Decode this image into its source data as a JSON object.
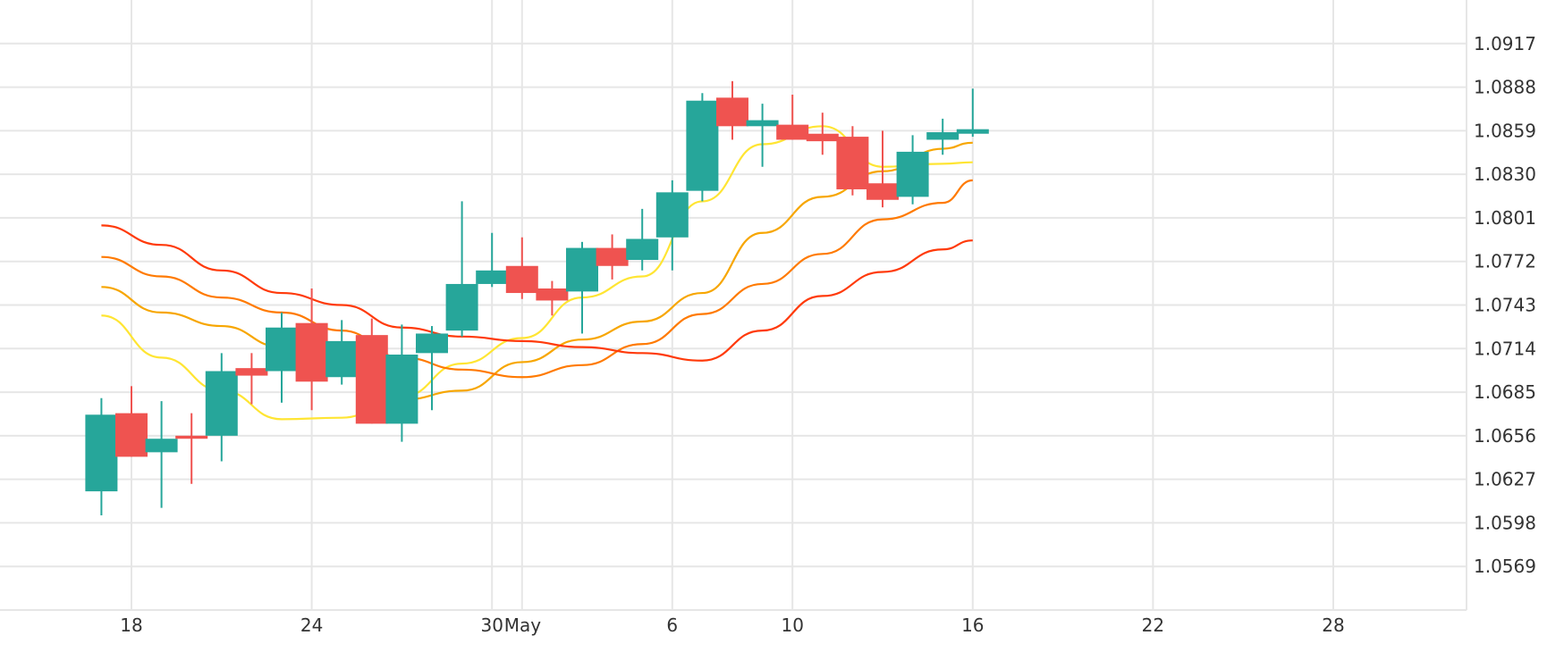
{
  "chart_data": {
    "type": "candlestick",
    "grid": true,
    "colors": {
      "up": "#26a69a",
      "down": "#ef5350",
      "grid": "#e6e6e6",
      "text": "#333333",
      "ma_yellow": "#ffe533",
      "ma_gold": "#f7a600",
      "ma_orange": "#ff7a00",
      "ma_red": "#ff3a0a"
    },
    "x_axis": {
      "date_range": [
        "2023-04-17",
        "2023-05-28"
      ],
      "ticks": [
        {
          "date": "2023-04-18",
          "label": "18"
        },
        {
          "date": "2023-04-24",
          "label": "24"
        },
        {
          "date": "2023-04-30",
          "label": "30"
        },
        {
          "date": "2023-05-01",
          "label": "May"
        },
        {
          "date": "2023-05-06",
          "label": "6"
        },
        {
          "date": "2023-05-10",
          "label": "10"
        },
        {
          "date": "2023-05-16",
          "label": "16"
        },
        {
          "date": "2023-05-22",
          "label": "22"
        },
        {
          "date": "2023-05-28",
          "label": "28"
        }
      ]
    },
    "y_axis": {
      "range": [
        1.054,
        1.0946
      ],
      "ticks": [
        "1.0917",
        "1.0888",
        "1.0859",
        "1.0830",
        "1.0801",
        "1.0772",
        "1.0743",
        "1.0714",
        "1.0685",
        "1.0656",
        "1.0627",
        "1.0598",
        "1.0569"
      ]
    },
    "candles": [
      {
        "date": "2023-04-17",
        "open": 1.0619,
        "high": 1.0681,
        "low": 1.0603,
        "close": 1.067
      },
      {
        "date": "2023-04-18",
        "open": 1.0671,
        "high": 1.0689,
        "low": 1.0642,
        "close": 1.0642
      },
      {
        "date": "2023-04-19",
        "open": 1.0645,
        "high": 1.0679,
        "low": 1.0608,
        "close": 1.0654
      },
      {
        "date": "2023-04-20",
        "open": 1.0656,
        "high": 1.0671,
        "low": 1.0624,
        "close": 1.0654
      },
      {
        "date": "2023-04-21",
        "open": 1.0656,
        "high": 1.0711,
        "low": 1.0639,
        "close": 1.0699
      },
      {
        "date": "2023-04-22",
        "open": 1.0701,
        "high": 1.0711,
        "low": 1.0677,
        "close": 1.0696
      },
      {
        "date": "2023-04-23",
        "open": 1.0699,
        "high": 1.0738,
        "low": 1.0678,
        "close": 1.0728
      },
      {
        "date": "2023-04-24",
        "open": 1.0731,
        "high": 1.0754,
        "low": 1.0673,
        "close": 1.0692
      },
      {
        "date": "2023-04-25",
        "open": 1.0695,
        "high": 1.0733,
        "low": 1.069,
        "close": 1.0719
      },
      {
        "date": "2023-04-26",
        "open": 1.0723,
        "high": 1.0734,
        "low": 1.0664,
        "close": 1.0664
      },
      {
        "date": "2023-04-27",
        "open": 1.0664,
        "high": 1.073,
        "low": 1.0652,
        "close": 1.071
      },
      {
        "date": "2023-04-28",
        "open": 1.0711,
        "high": 1.0729,
        "low": 1.0673,
        "close": 1.0724
      },
      {
        "date": "2023-04-29",
        "open": 1.0726,
        "high": 1.0812,
        "low": 1.0722,
        "close": 1.0757
      },
      {
        "date": "2023-04-30",
        "open": 1.0757,
        "high": 1.0791,
        "low": 1.0755,
        "close": 1.0766
      },
      {
        "date": "2023-05-01",
        "open": 1.0769,
        "high": 1.0788,
        "low": 1.0747,
        "close": 1.0751
      },
      {
        "date": "2023-05-02",
        "open": 1.0754,
        "high": 1.0759,
        "low": 1.0736,
        "close": 1.0746
      },
      {
        "date": "2023-05-03",
        "open": 1.0752,
        "high": 1.0785,
        "low": 1.0724,
        "close": 1.0781
      },
      {
        "date": "2023-05-04",
        "open": 1.0781,
        "high": 1.079,
        "low": 1.076,
        "close": 1.0769
      },
      {
        "date": "2023-05-05",
        "open": 1.0773,
        "high": 1.0807,
        "low": 1.0766,
        "close": 1.0787
      },
      {
        "date": "2023-05-06",
        "open": 1.0788,
        "high": 1.0826,
        "low": 1.0766,
        "close": 1.0818
      },
      {
        "date": "2023-05-07",
        "open": 1.0819,
        "high": 1.0884,
        "low": 1.0812,
        "close": 1.0879
      },
      {
        "date": "2023-05-08",
        "open": 1.0881,
        "high": 1.0892,
        "low": 1.0853,
        "close": 1.0862
      },
      {
        "date": "2023-05-09",
        "open": 1.0862,
        "high": 1.0877,
        "low": 1.0835,
        "close": 1.0866
      },
      {
        "date": "2023-05-10",
        "open": 1.0863,
        "high": 1.0883,
        "low": 1.0853,
        "close": 1.0853
      },
      {
        "date": "2023-05-11",
        "open": 1.0857,
        "high": 1.0871,
        "low": 1.0843,
        "close": 1.0852
      },
      {
        "date": "2023-05-12",
        "open": 1.0855,
        "high": 1.0862,
        "low": 1.0816,
        "close": 1.082
      },
      {
        "date": "2023-05-13",
        "open": 1.0824,
        "high": 1.0859,
        "low": 1.0808,
        "close": 1.0813
      },
      {
        "date": "2023-05-14",
        "open": 1.0815,
        "high": 1.0856,
        "low": 1.081,
        "close": 1.0845
      },
      {
        "date": "2023-05-15",
        "open": 1.0853,
        "high": 1.0867,
        "low": 1.0843,
        "close": 1.0858
      },
      {
        "date": "2023-05-16",
        "open": 1.0857,
        "high": 1.0887,
        "low": 1.0855,
        "close": 1.086
      }
    ],
    "moving_averages": [
      {
        "color": "#ffe533",
        "x": [
          "2023-04-17",
          "2023-04-19",
          "2023-04-21",
          "2023-04-23",
          "2023-04-25",
          "2023-04-27",
          "2023-04-29",
          "2023-05-01",
          "2023-05-03",
          "2023-05-05",
          "2023-05-07",
          "2023-05-09",
          "2023-05-11",
          "2023-05-13",
          "2023-05-15",
          "2023-05-16"
        ],
        "y": [
          1.0736,
          1.0708,
          1.0686,
          1.0667,
          1.0668,
          1.0682,
          1.0704,
          1.0721,
          1.0748,
          1.0762,
          1.0812,
          1.085,
          1.0862,
          1.0835,
          1.0837,
          1.0838
        ]
      },
      {
        "color": "#f7a600",
        "x": [
          "2023-04-17",
          "2023-04-19",
          "2023-04-21",
          "2023-04-23",
          "2023-04-25",
          "2023-04-27",
          "2023-04-29",
          "2023-05-01",
          "2023-05-03",
          "2023-05-05",
          "2023-05-07",
          "2023-05-09",
          "2023-05-11",
          "2023-05-13",
          "2023-05-15",
          "2023-05-16"
        ],
        "y": [
          1.0755,
          1.0738,
          1.0729,
          1.0715,
          1.07,
          1.068,
          1.0686,
          1.0705,
          1.072,
          1.0732,
          1.0751,
          1.0791,
          1.0815,
          1.0832,
          1.0847,
          1.0851
        ]
      },
      {
        "color": "#ff7a00",
        "x": [
          "2023-04-17",
          "2023-04-19",
          "2023-04-21",
          "2023-04-23",
          "2023-04-25",
          "2023-04-27",
          "2023-04-29",
          "2023-05-01",
          "2023-05-03",
          "2023-05-05",
          "2023-05-07",
          "2023-05-09",
          "2023-05-11",
          "2023-05-13",
          "2023-05-15",
          "2023-05-16"
        ],
        "y": [
          1.0775,
          1.0762,
          1.0748,
          1.0738,
          1.0726,
          1.0708,
          1.07,
          1.0695,
          1.0703,
          1.0717,
          1.0737,
          1.0757,
          1.0777,
          1.08,
          1.0811,
          1.0826
        ]
      },
      {
        "color": "#ff3a0a",
        "x": [
          "2023-04-17",
          "2023-04-19",
          "2023-04-21",
          "2023-04-23",
          "2023-04-25",
          "2023-04-27",
          "2023-04-29",
          "2023-05-01",
          "2023-05-03",
          "2023-05-05",
          "2023-05-07",
          "2023-05-09",
          "2023-05-11",
          "2023-05-13",
          "2023-05-15",
          "2023-05-16"
        ],
        "y": [
          1.0796,
          1.0783,
          1.0766,
          1.0751,
          1.0743,
          1.0728,
          1.0722,
          1.0719,
          1.0715,
          1.0711,
          1.0706,
          1.0726,
          1.0749,
          1.0765,
          1.078,
          1.0786
        ]
      }
    ]
  }
}
